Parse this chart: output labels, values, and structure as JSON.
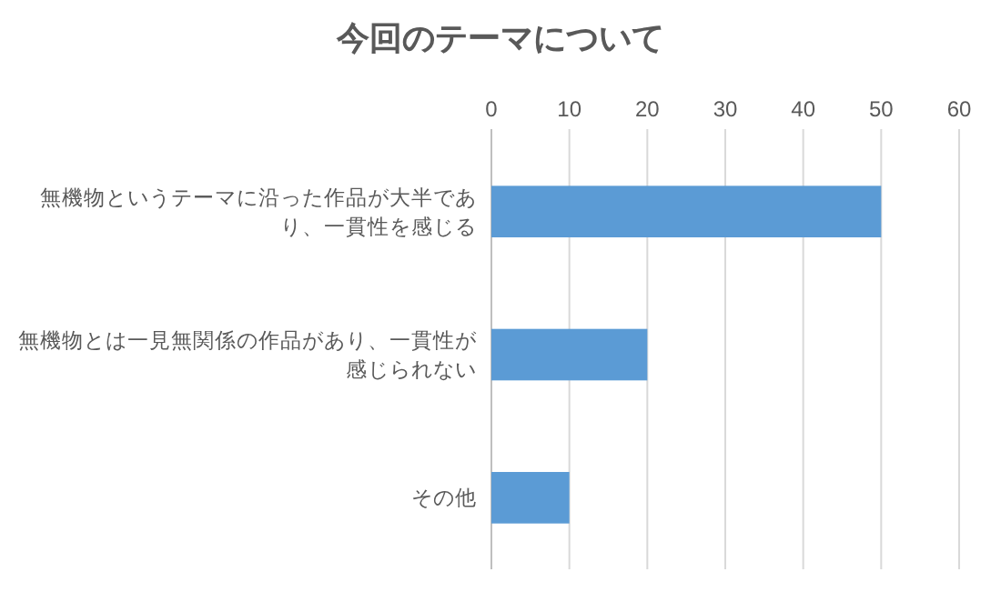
{
  "chart_data": {
    "type": "bar",
    "orientation": "horizontal",
    "title": "今回のテーマについて",
    "categories": [
      "無機物というテーマに沿った作品が大半であり、一貫性を感じる",
      "無機物とは一見無関係の作品があり、一貫性が感じられない",
      "その他"
    ],
    "values": [
      50,
      20,
      10
    ],
    "color": "#5b9bd5",
    "xlim": [
      0,
      60
    ],
    "xticks": [
      0,
      10,
      20,
      30,
      40,
      50,
      60
    ],
    "grid": "x"
  }
}
